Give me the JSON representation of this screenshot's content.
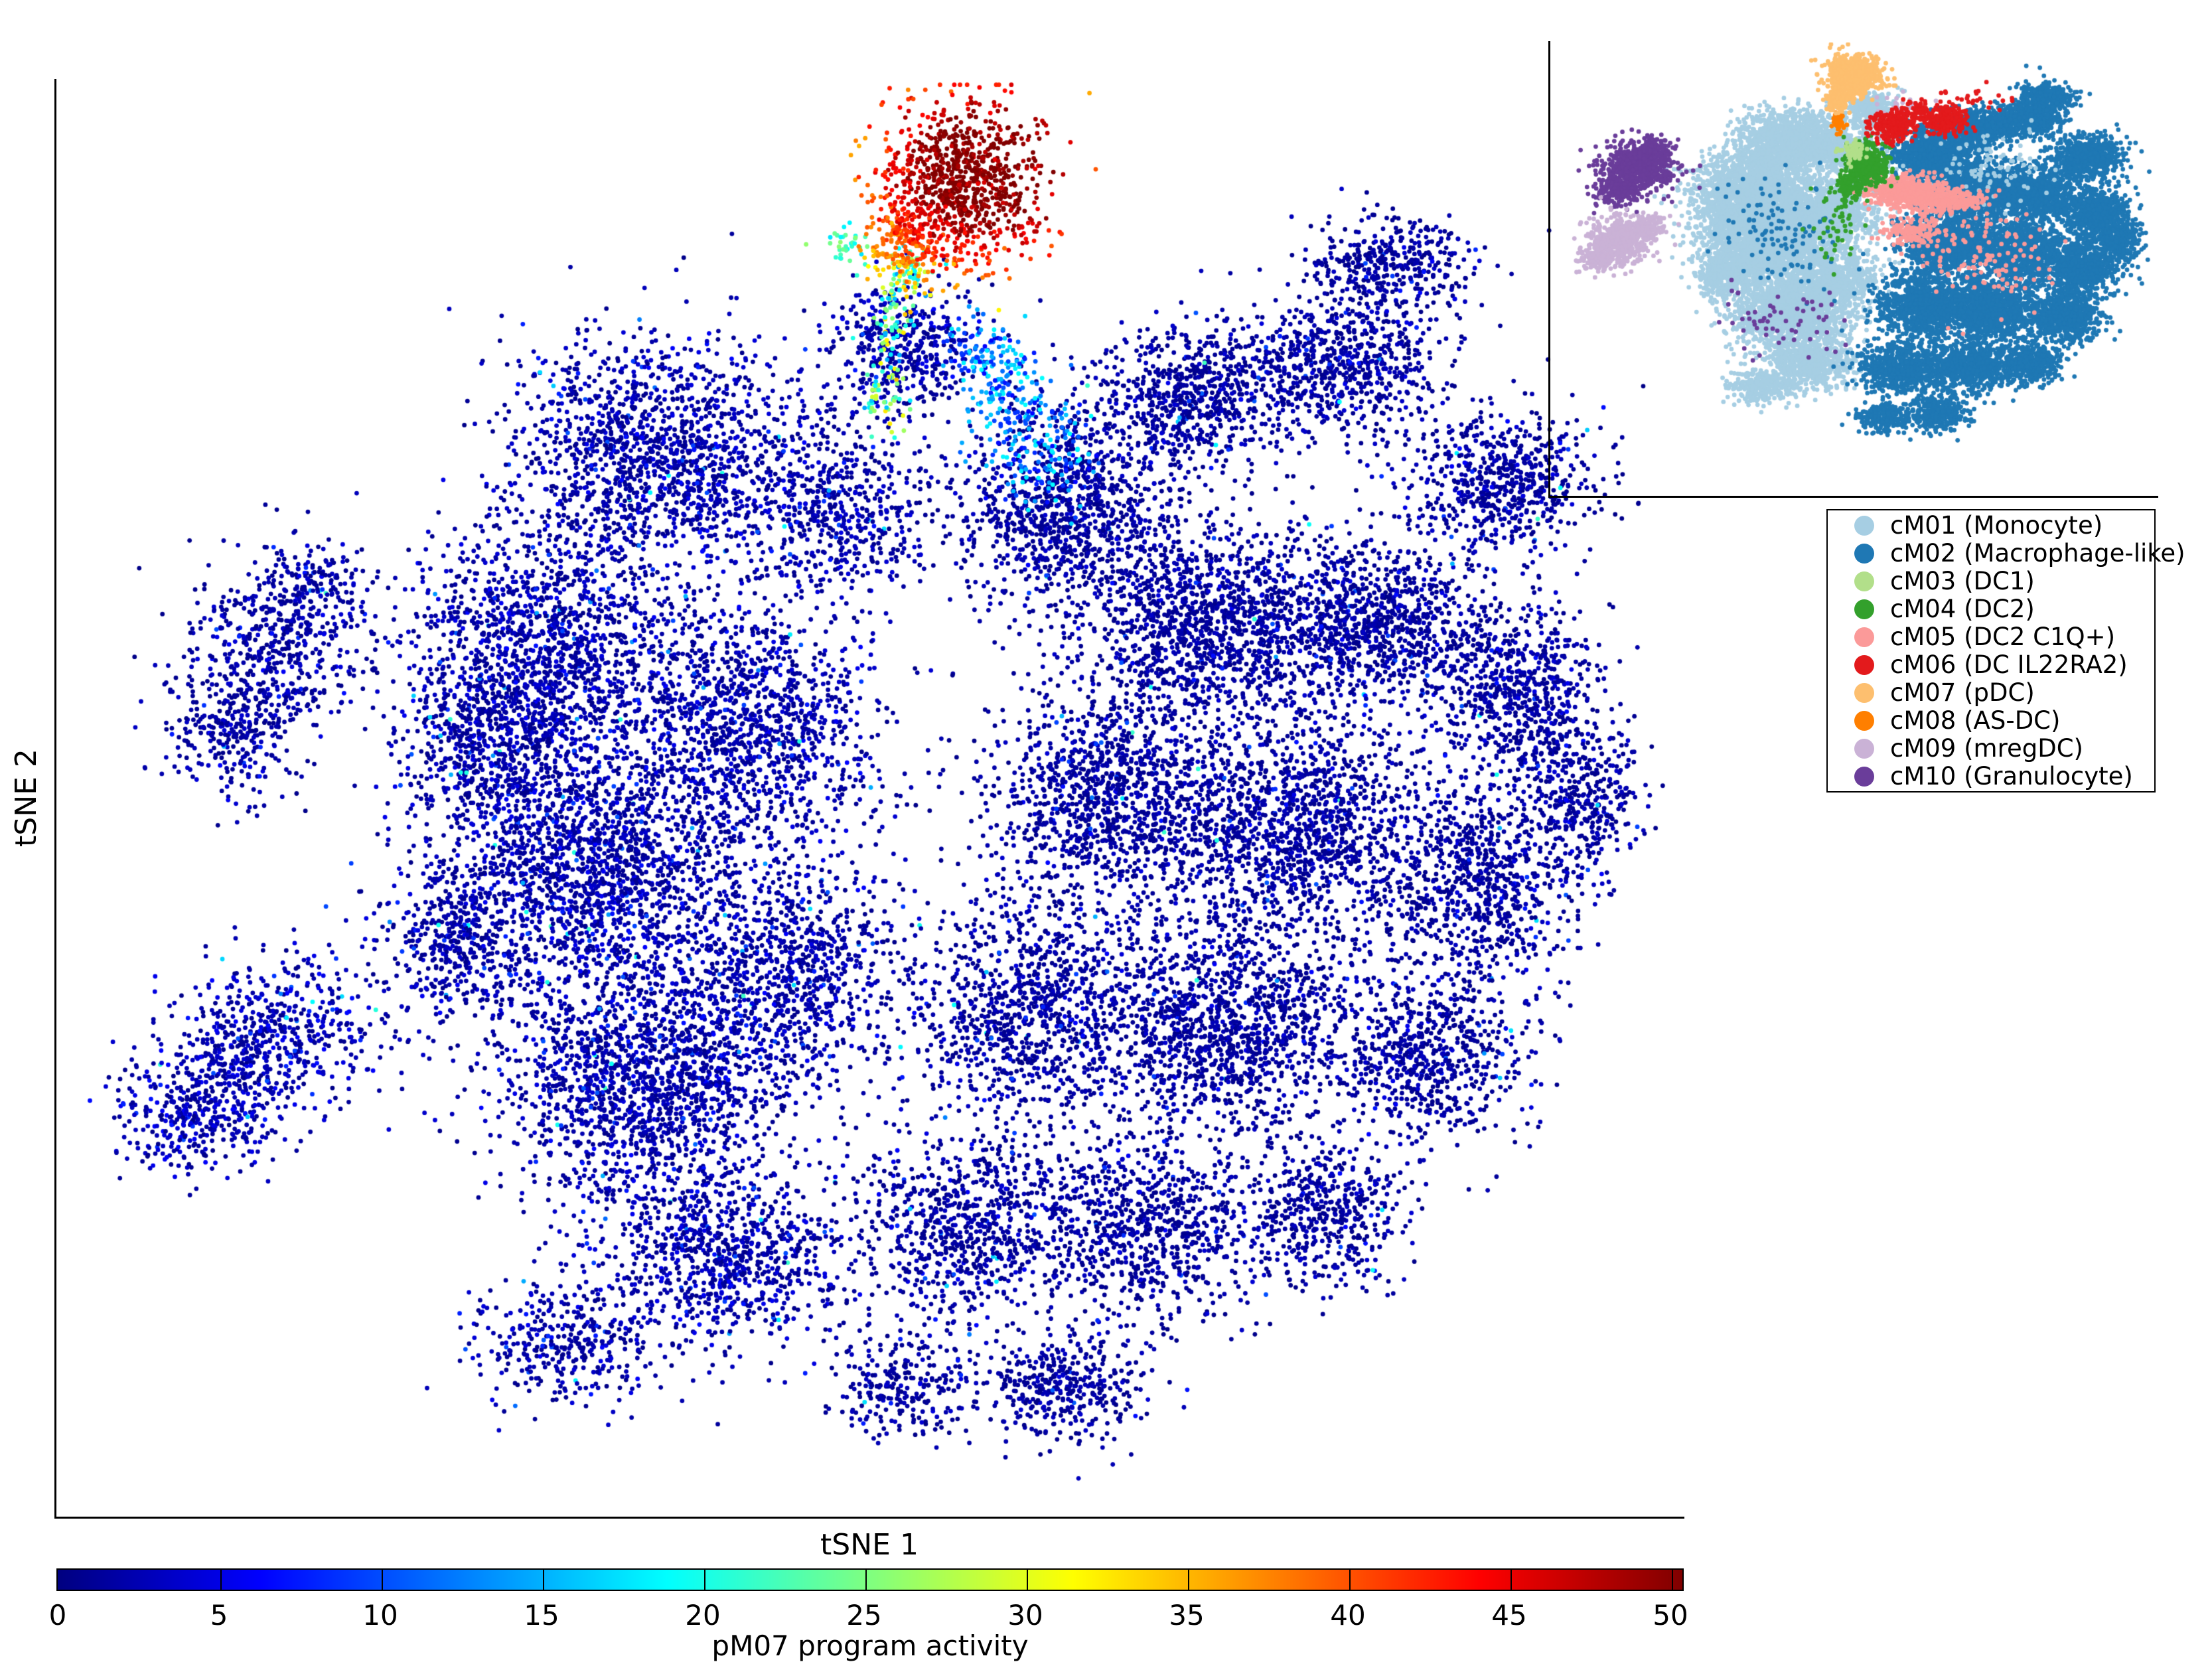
{
  "chart_data": {
    "type": "scatter",
    "xlabel": "tSNE 1",
    "ylabel": "tSNE 2",
    "seed": 1337,
    "color_scale": {
      "label": "pM07 program activity",
      "min": 0,
      "max": 50,
      "ticks": [
        0,
        5,
        10,
        15,
        20,
        25,
        30,
        35,
        40,
        45,
        50
      ],
      "colormap": "jet",
      "jet_stops": [
        [
          0,
          "#000080"
        ],
        [
          0.125,
          "#0000ff"
        ],
        [
          0.375,
          "#00ffff"
        ],
        [
          0.625,
          "#ffff00"
        ],
        [
          0.875,
          "#ff0000"
        ],
        [
          1,
          "#800000"
        ]
      ]
    },
    "legend": [
      {
        "id": "cM01",
        "label": "cM01 (Monocyte)",
        "color": "#a6cee3"
      },
      {
        "id": "cM02",
        "label": "cM02 (Macrophage-like)",
        "color": "#1f78b4"
      },
      {
        "id": "cM03",
        "label": "cM03 (DC1)",
        "color": "#b2df8a"
      },
      {
        "id": "cM04",
        "label": "cM04 (DC2)",
        "color": "#33a02c"
      },
      {
        "id": "cM05",
        "label": "cM05 (DC2 C1Q+)",
        "color": "#fb9a99"
      },
      {
        "id": "cM06",
        "label": "cM06 (DC IL22RA2)",
        "color": "#e31a1c"
      },
      {
        "id": "cM07",
        "label": "cM07 (pDC)",
        "color": "#fdbf6f"
      },
      {
        "id": "cM08",
        "label": "cM08 (AS-DC)",
        "color": "#ff7f00"
      },
      {
        "id": "cM09",
        "label": "cM09 (mregDC)",
        "color": "#cab2d6"
      },
      {
        "id": "cM10",
        "label": "cM10 (Granulocyte)",
        "color": "#6a3d9a"
      }
    ],
    "main_plot": {
      "point_radius": 3.4,
      "clusters": [
        {
          "name": "monocyte-mass",
          "activity": {
            "kind": "baseline",
            "s": 2.2,
            "p1": 0.045,
            "p2": 0.01
          },
          "blobs": [
            [
              0.37,
              0.26,
              0.09,
              0.08,
              1500
            ],
            [
              0.3,
              0.4,
              0.09,
              0.09,
              1700
            ],
            [
              0.33,
              0.55,
              0.095,
              0.09,
              1800
            ],
            [
              0.36,
              0.7,
              0.09,
              0.085,
              1700
            ],
            [
              0.43,
              0.45,
              0.075,
              0.085,
              1200
            ],
            [
              0.45,
              0.62,
              0.065,
              0.08,
              900
            ],
            [
              0.41,
              0.82,
              0.075,
              0.065,
              900
            ],
            [
              0.48,
              0.3,
              0.055,
              0.06,
              550
            ],
            [
              0.31,
              0.88,
              0.055,
              0.045,
              380
            ],
            [
              0.25,
              0.6,
              0.05,
              0.06,
              480
            ],
            [
              0.26,
              0.47,
              0.05,
              0.05,
              420
            ],
            [
              0.52,
              0.19,
              0.05,
              0.045,
              450
            ]
          ]
        },
        {
          "name": "macrophage-mass",
          "activity": {
            "kind": "baseline",
            "s": 1.6,
            "p1": 0.028,
            "p2": 0.006
          },
          "blobs": [
            [
              0.62,
              0.3,
              0.07,
              0.07,
              1100
            ],
            [
              0.7,
              0.22,
              0.06,
              0.05,
              700
            ],
            [
              0.79,
              0.2,
              0.06,
              0.045,
              650
            ],
            [
              0.82,
              0.13,
              0.05,
              0.035,
              420
            ],
            [
              0.89,
              0.28,
              0.055,
              0.05,
              650
            ],
            [
              0.71,
              0.38,
              0.08,
              0.07,
              1300
            ],
            [
              0.81,
              0.38,
              0.07,
              0.06,
              950
            ],
            [
              0.9,
              0.43,
              0.055,
              0.06,
              700
            ],
            [
              0.65,
              0.5,
              0.08,
              0.08,
              1300
            ],
            [
              0.77,
              0.52,
              0.08,
              0.08,
              1300
            ],
            [
              0.88,
              0.56,
              0.06,
              0.07,
              800
            ],
            [
              0.6,
              0.65,
              0.08,
              0.08,
              1100
            ],
            [
              0.72,
              0.66,
              0.08,
              0.08,
              1300
            ],
            [
              0.84,
              0.68,
              0.06,
              0.06,
              700
            ],
            [
              0.56,
              0.8,
              0.07,
              0.07,
              800
            ],
            [
              0.67,
              0.8,
              0.07,
              0.06,
              800
            ],
            [
              0.78,
              0.79,
              0.05,
              0.05,
              480
            ],
            [
              0.62,
              0.91,
              0.05,
              0.04,
              400
            ],
            [
              0.52,
              0.91,
              0.045,
              0.035,
              260
            ],
            [
              0.94,
              0.5,
              0.035,
              0.05,
              320
            ]
          ]
        },
        {
          "name": "granulocyte-island",
          "activity": {
            "kind": "baseline",
            "s": 1.9,
            "p1": 0.03,
            "p2": 0.005
          },
          "blobs": [
            [
              0.135,
              0.39,
              0.055,
              0.055,
              450
            ],
            [
              0.11,
              0.45,
              0.045,
              0.05,
              350
            ],
            [
              0.16,
              0.35,
              0.03,
              0.03,
              120
            ]
          ]
        },
        {
          "name": "mregdc-island",
          "activity": {
            "kind": "baseline",
            "s": 2.6,
            "p1": 0.06,
            "p2": 0.012
          },
          "blobs": [
            [
              0.085,
              0.72,
              0.05,
              0.045,
              350
            ],
            [
              0.14,
              0.66,
              0.06,
              0.05,
              420
            ],
            [
              0.11,
              0.69,
              0.05,
              0.05,
              230
            ]
          ]
        },
        {
          "name": "dc-transition-streak",
          "activity": {
            "kind": "uniform",
            "min": 6,
            "max": 19
          },
          "blobs": [
            [
              0.585,
              0.225,
              0.025,
              0.05,
              160
            ],
            [
              0.61,
              0.26,
              0.03,
              0.04,
              120
            ],
            [
              0.565,
              0.19,
              0.02,
              0.03,
              80
            ]
          ]
        },
        {
          "name": "pdc-stem-trail",
          "activity": {
            "kind": "uniform",
            "min": 14,
            "max": 35
          },
          "blobs": [
            [
              0.51,
              0.215,
              0.013,
              0.03,
              60
            ],
            [
              0.515,
              0.165,
              0.012,
              0.025,
              50
            ],
            [
              0.525,
              0.135,
              0.015,
              0.02,
              60
            ]
          ]
        },
        {
          "name": "teal-tip",
          "activity": {
            "kind": "uniform",
            "min": 17,
            "max": 26
          },
          "blobs": [
            [
              0.485,
              0.115,
              0.012,
              0.015,
              35
            ]
          ]
        },
        {
          "name": "pdc-hot-cluster",
          "activity": {
            "kind": "pdc",
            "cx": 0.57,
            "cy": 0.062,
            "peak": 50,
            "falloff": 260,
            "flat": 0.035,
            "noise": 2.2,
            "min": 24
          },
          "blobs": [
            [
              0.555,
              0.075,
              0.05,
              0.055,
              950
            ],
            [
              0.52,
              0.115,
              0.025,
              0.03,
              180
            ]
          ]
        }
      ]
    },
    "inset_plot": {
      "point_radius": 3.4,
      "clusters": [
        {
          "name": "cM01-monocyte",
          "color": "#a6cee3",
          "blobs": [
            [
              0.4,
              0.22,
              0.09,
              0.07,
              1500
            ],
            [
              0.34,
              0.33,
              0.1,
              0.08,
              1800
            ],
            [
              0.37,
              0.46,
              0.1,
              0.08,
              1800
            ],
            [
              0.4,
              0.6,
              0.09,
              0.075,
              1500
            ],
            [
              0.46,
              0.38,
              0.075,
              0.07,
              1000
            ],
            [
              0.48,
              0.52,
              0.06,
              0.06,
              600
            ],
            [
              0.43,
              0.71,
              0.075,
              0.055,
              700
            ],
            [
              0.5,
              0.25,
              0.05,
              0.05,
              420
            ],
            [
              0.35,
              0.76,
              0.05,
              0.035,
              300
            ],
            [
              0.29,
              0.52,
              0.05,
              0.05,
              380
            ],
            [
              0.3,
              0.4,
              0.05,
              0.05,
              350
            ],
            [
              0.53,
              0.15,
              0.045,
              0.04,
              300
            ]
          ]
        },
        {
          "name": "cM02-macrophage",
          "color": "#1f78b4",
          "blobs": [
            [
              0.63,
              0.25,
              0.07,
              0.06,
              900
            ],
            [
              0.7,
              0.19,
              0.06,
              0.045,
              600
            ],
            [
              0.79,
              0.17,
              0.055,
              0.04,
              550
            ],
            [
              0.82,
              0.12,
              0.045,
              0.03,
              350
            ],
            [
              0.89,
              0.25,
              0.055,
              0.045,
              550
            ],
            [
              0.71,
              0.33,
              0.08,
              0.06,
              1100
            ],
            [
              0.81,
              0.33,
              0.07,
              0.055,
              800
            ],
            [
              0.9,
              0.38,
              0.055,
              0.055,
              600
            ],
            [
              0.66,
              0.44,
              0.08,
              0.07,
              1100
            ],
            [
              0.78,
              0.46,
              0.08,
              0.07,
              1100
            ],
            [
              0.88,
              0.5,
              0.06,
              0.06,
              650
            ],
            [
              0.62,
              0.58,
              0.08,
              0.07,
              950
            ],
            [
              0.73,
              0.59,
              0.08,
              0.07,
              1100
            ],
            [
              0.85,
              0.61,
              0.06,
              0.055,
              600
            ],
            [
              0.58,
              0.72,
              0.07,
              0.06,
              700
            ],
            [
              0.69,
              0.72,
              0.07,
              0.055,
              700
            ],
            [
              0.79,
              0.71,
              0.05,
              0.045,
              420
            ],
            [
              0.64,
              0.82,
              0.05,
              0.04,
              350
            ],
            [
              0.55,
              0.83,
              0.045,
              0.03,
              220
            ],
            [
              0.94,
              0.44,
              0.035,
              0.045,
              280
            ]
          ]
        },
        {
          "name": "blue-sprinkle-in-monocyte",
          "color": "#1f78b4",
          "blobs": [
            [
              0.38,
              0.42,
              0.1,
              0.12,
              110
            ]
          ]
        },
        {
          "name": "lightblue-sprinkle-in-macrophage",
          "color": "#a6cee3",
          "blobs": [
            [
              0.72,
              0.28,
              0.1,
              0.1,
              90
            ]
          ]
        },
        {
          "name": "purple-sprinkle",
          "color": "#6a3d9a",
          "blobs": [
            [
              0.38,
              0.62,
              0.1,
              0.08,
              60
            ]
          ]
        },
        {
          "name": "green-sprinkle",
          "color": "#33a02c",
          "blobs": [
            [
              0.47,
              0.4,
              0.04,
              0.1,
              50
            ]
          ]
        },
        {
          "name": "pink-sprinkle",
          "color": "#fb9a99",
          "blobs": [
            [
              0.73,
              0.5,
              0.12,
              0.1,
              50
            ]
          ]
        },
        {
          "name": "lavender-sprinkle",
          "color": "#cab2d6",
          "blobs": [
            [
              0.58,
              0.14,
              0.05,
              0.025,
              30
            ]
          ]
        },
        {
          "name": "red-sprinkle",
          "color": "#e31a1c",
          "blobs": [
            [
              0.7,
              0.12,
              0.06,
              0.03,
              25
            ]
          ]
        },
        {
          "name": "cM10-granulocyte",
          "color": "#6a3d9a",
          "blobs": [
            [
              0.145,
              0.275,
              0.06,
              0.055,
              650
            ],
            [
              0.115,
              0.33,
              0.04,
              0.035,
              200
            ],
            [
              0.175,
              0.24,
              0.03,
              0.03,
              120
            ]
          ]
        },
        {
          "name": "cM09-mregdc",
          "color": "#cab2d6",
          "blobs": [
            [
              0.115,
              0.44,
              0.055,
              0.05,
              550
            ],
            [
              0.075,
              0.48,
              0.03,
              0.03,
              130
            ],
            [
              0.16,
              0.41,
              0.03,
              0.03,
              120
            ]
          ]
        },
        {
          "name": "cM05-dc2-c1q",
          "color": "#fb9a99",
          "blobs": [
            [
              0.585,
              0.33,
              0.06,
              0.035,
              480
            ],
            [
              0.65,
              0.35,
              0.06,
              0.03,
              300
            ],
            [
              0.6,
              0.42,
              0.05,
              0.03,
              160
            ],
            [
              0.72,
              0.45,
              0.12,
              0.1,
              70
            ]
          ]
        },
        {
          "name": "cM04-dc2",
          "color": "#33a02c",
          "blobs": [
            [
              0.52,
              0.27,
              0.035,
              0.05,
              450
            ],
            [
              0.49,
              0.32,
              0.02,
              0.03,
              90
            ]
          ]
        },
        {
          "name": "cM03-dc1",
          "color": "#b2df8a",
          "blobs": [
            [
              0.5,
              0.24,
              0.018,
              0.025,
              70
            ]
          ]
        },
        {
          "name": "cM06-dc-il22ra2",
          "color": "#e31a1c",
          "blobs": [
            [
              0.565,
              0.185,
              0.038,
              0.032,
              260
            ],
            [
              0.655,
              0.175,
              0.032,
              0.028,
              220
            ],
            [
              0.61,
              0.15,
              0.05,
              0.025,
              60
            ]
          ]
        },
        {
          "name": "cM08-as-dc",
          "color": "#ff7f00",
          "blobs": [
            [
              0.475,
              0.175,
              0.012,
              0.022,
              50
            ]
          ]
        },
        {
          "name": "cM07-pdc",
          "color": "#fdbf6f",
          "blobs": [
            [
              0.5,
              0.075,
              0.042,
              0.045,
              800
            ],
            [
              0.475,
              0.13,
              0.018,
              0.022,
              120
            ]
          ]
        }
      ]
    }
  }
}
